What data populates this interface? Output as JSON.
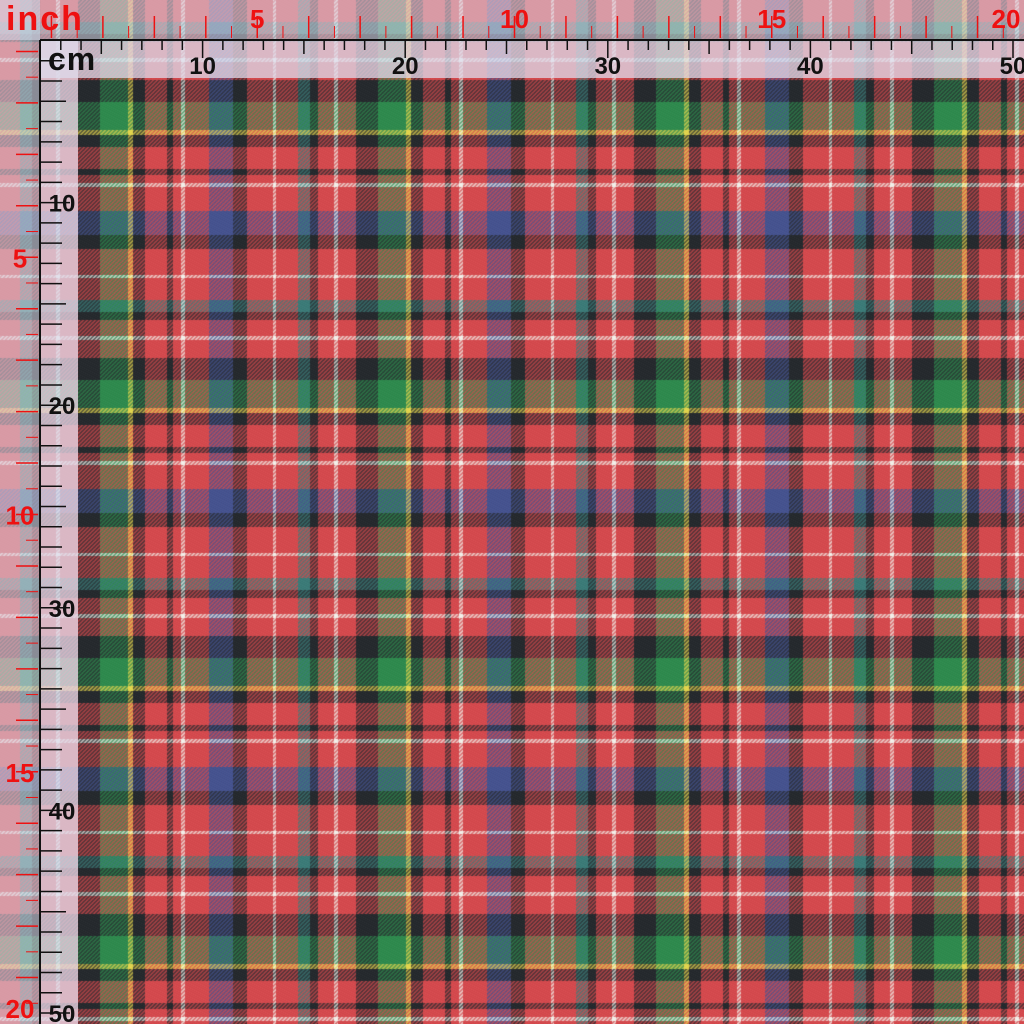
{
  "rulers": {
    "inch": {
      "unit_label": "inch",
      "label_color": "#ee1111",
      "labels": [
        "5",
        "10",
        "15",
        "20"
      ]
    },
    "cm": {
      "unit_label": "cm",
      "label_color": "#111111",
      "labels": [
        "10",
        "20",
        "30",
        "40",
        "50"
      ]
    }
  },
  "fabric": {
    "pattern": "tartan plaid",
    "colors": {
      "red": "#d44a4e",
      "green": "#2f8a4e",
      "navy": "#46538f",
      "black": "#262a2e",
      "yellow": "#e1d44e",
      "white": "#f2f0ea",
      "teal": "#3c7b78"
    }
  },
  "overlay": {
    "ruler_band_color": "#dcdcec",
    "tick_color": "#111111"
  }
}
